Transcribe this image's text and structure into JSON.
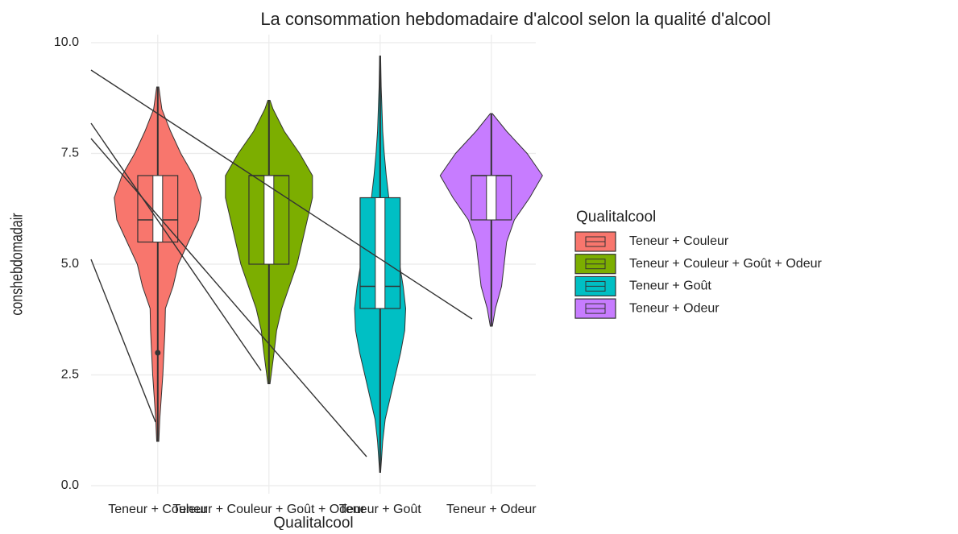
{
  "chart_data": {
    "type": "violin",
    "title": "La consommation hebdomadaire d'alcool selon la qualité d'alcool",
    "x_label": "Qualitalcool",
    "y_label": "conshebdomadair",
    "legend_title": "Qualitalcool",
    "legend_position": "right",
    "grid": true,
    "ylim": [
      0,
      10
    ],
    "yticks": [
      {
        "value": 0,
        "label": "0.0"
      },
      {
        "value": 2.5,
        "label": "2.5"
      },
      {
        "value": 5,
        "label": "5.0"
      },
      {
        "value": 7.5,
        "label": "7.5"
      },
      {
        "value": 10,
        "label": "10.0"
      }
    ],
    "categories": [
      "Teneur + Couleur",
      "Teneur + Couleur + Goût + Odeur",
      "Teneur + Goût",
      "Teneur + Odeur"
    ],
    "series": [
      {
        "name": "Teneur + Couleur",
        "color": "#F8766D",
        "min": 1.0,
        "q1": 5.5,
        "median": 6,
        "q3": 7,
        "max": 9.0,
        "outliers": [
          3.0
        ],
        "violin": {
          "y": [
            1.0,
            1.5,
            2.0,
            2.5,
            3.0,
            3.5,
            4.0,
            4.5,
            5.0,
            5.5,
            6.0,
            6.5,
            7.0,
            7.5,
            8.0,
            8.5,
            9.0
          ],
          "density": [
            0.02,
            0.04,
            0.07,
            0.1,
            0.12,
            0.14,
            0.15,
            0.3,
            0.4,
            0.6,
            0.8,
            0.85,
            0.7,
            0.45,
            0.25,
            0.08,
            0.02
          ]
        }
      },
      {
        "name": "Teneur + Couleur + Goût + Odeur",
        "color": "#7CAE00",
        "min": 2.3,
        "q1": 5,
        "median": 7,
        "q3": 7,
        "max": 8.7,
        "outliers": [],
        "violin": {
          "y": [
            2.3,
            3.0,
            3.5,
            4.0,
            4.5,
            5.0,
            5.5,
            6.0,
            6.5,
            7.0,
            7.5,
            8.0,
            8.5,
            8.7
          ],
          "density": [
            0.02,
            0.1,
            0.15,
            0.25,
            0.4,
            0.55,
            0.65,
            0.75,
            0.85,
            0.85,
            0.6,
            0.3,
            0.08,
            0.02
          ]
        }
      },
      {
        "name": "Teneur + Goût",
        "color": "#00BFC4",
        "min": 0.3,
        "q1": 4,
        "median": 4.5,
        "q3": 6.5,
        "max": 9.7,
        "outliers": [],
        "violin": {
          "y": [
            0.3,
            1.0,
            1.5,
            2.0,
            2.5,
            3.0,
            3.5,
            4.0,
            4.5,
            5.0,
            5.5,
            6.0,
            6.5,
            7.0,
            7.5,
            8.0,
            9.0,
            9.7
          ],
          "density": [
            0.01,
            0.05,
            0.1,
            0.2,
            0.3,
            0.4,
            0.48,
            0.5,
            0.45,
            0.38,
            0.3,
            0.22,
            0.17,
            0.12,
            0.08,
            0.05,
            0.02,
            0.01
          ]
        }
      },
      {
        "name": "Teneur + Odeur",
        "color": "#C77CFF",
        "min": 3.6,
        "q1": 6,
        "median": 7,
        "q3": 7,
        "max": 8.4,
        "outliers": [],
        "violin": {
          "y": [
            3.6,
            4.0,
            4.5,
            5.0,
            5.5,
            6.0,
            6.5,
            7.0,
            7.5,
            8.0,
            8.4
          ],
          "density": [
            0.02,
            0.08,
            0.2,
            0.25,
            0.3,
            0.45,
            0.75,
            1.0,
            0.7,
            0.3,
            0.02
          ]
        }
      }
    ]
  }
}
